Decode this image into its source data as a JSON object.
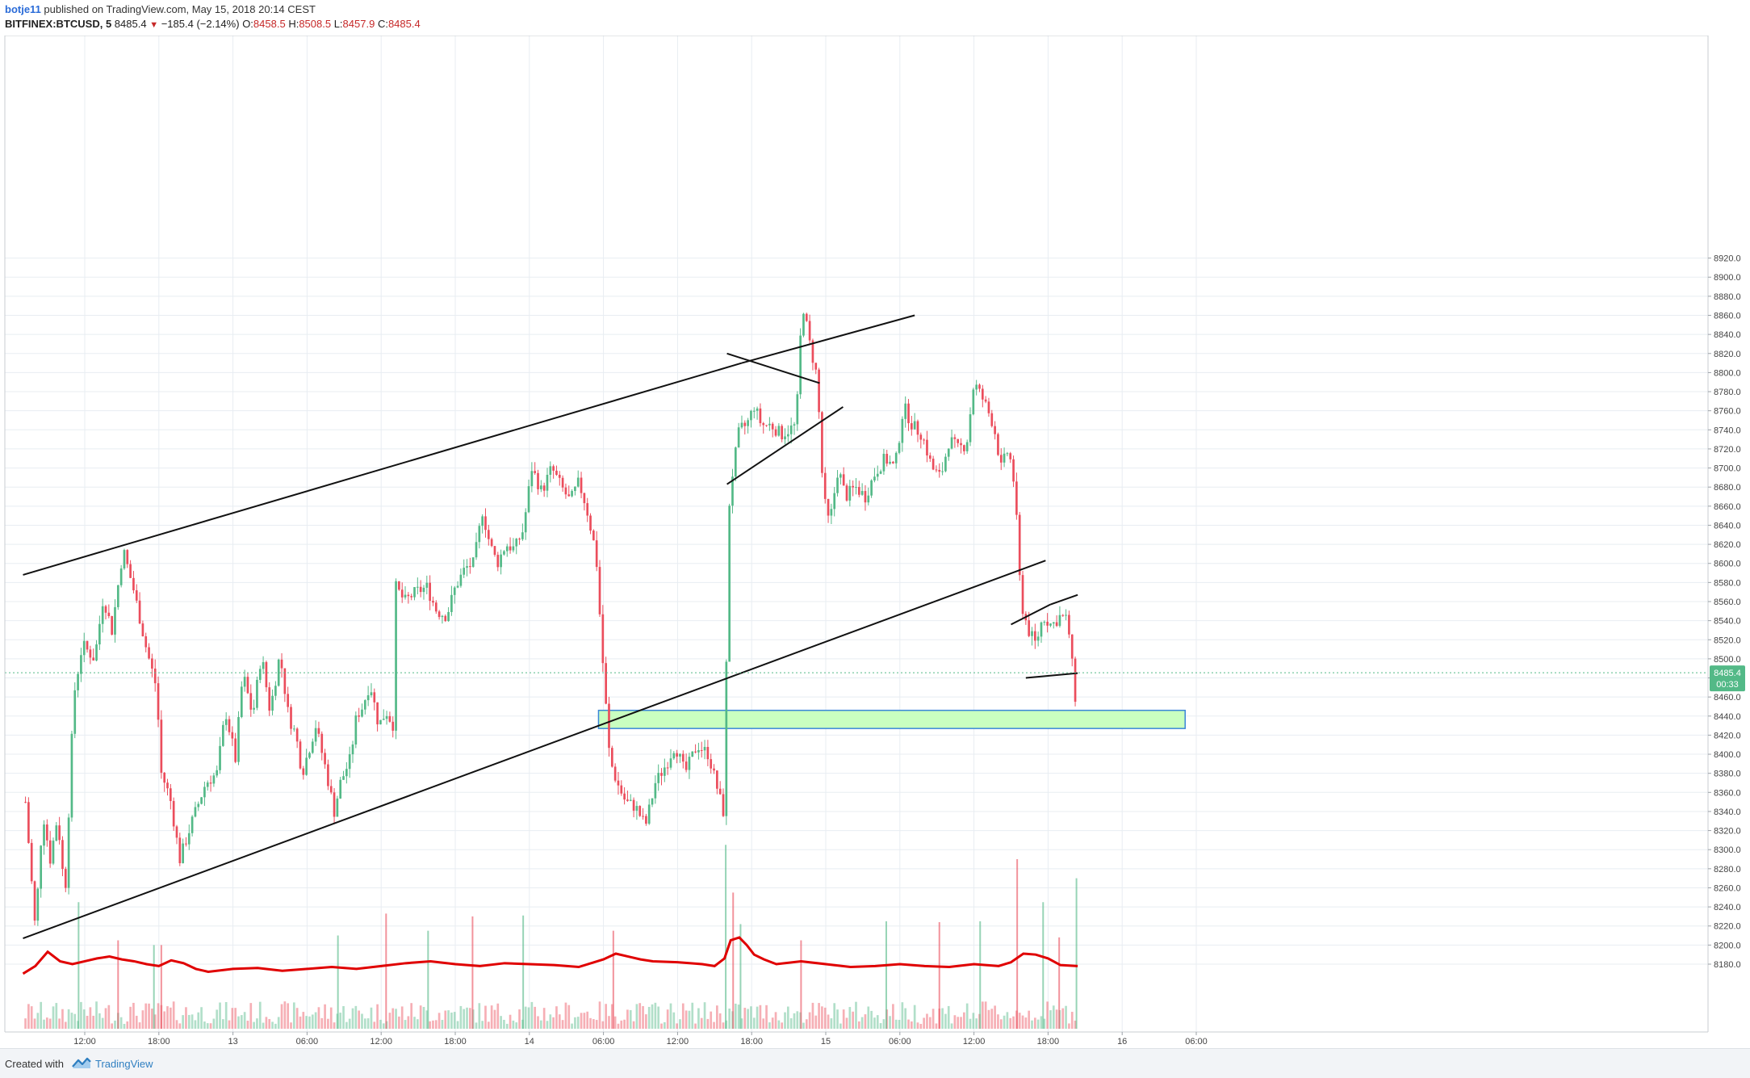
{
  "header": {
    "author": "botje11",
    "published_text": "published on TradingView.com, May 15, 2018 20:14 CEST",
    "symbol": "BITFINEX:BTCUSD, 5",
    "last": "8485.4",
    "change": "−185.4 (−2.14%)",
    "o_label": "O:",
    "o_value": "8458.5",
    "h_label": "H:",
    "h_value": "8508.5",
    "l_label": "L:",
    "l_value": "8457.9",
    "c_label": "C:",
    "c_value": "8485.4"
  },
  "footer": {
    "created_with": "Created with",
    "brand": "TradingView"
  },
  "colors": {
    "up": "#53b987",
    "down": "#eb4d5c",
    "grid": "#e8edf2",
    "volume_ma": "#e00000",
    "zone_fill": "#c9ffc0",
    "zone_border": "#3a86d8",
    "price_label_bg": "#53b987",
    "last_price_line": "#53b987"
  },
  "chart_data": {
    "type": "candlestick",
    "symbol": "BITFINEX:BTCUSD",
    "timeframe": "5",
    "yaxis": {
      "range": [
        8160,
        8920
      ],
      "ticks": [
        "8920.0",
        "8900.0",
        "8880.0",
        "8860.0",
        "8840.0",
        "8820.0",
        "8800.0",
        "8780.0",
        "8760.0",
        "8740.0",
        "8720.0",
        "8700.0",
        "8680.0",
        "8660.0",
        "8640.0",
        "8620.0",
        "8600.0",
        "8580.0",
        "8560.0",
        "8540.0",
        "8520.0",
        "8500.0",
        "8480.0",
        "8460.0",
        "8440.0",
        "8420.0",
        "8400.0",
        "8380.0",
        "8360.0",
        "8340.0",
        "8320.0",
        "8300.0",
        "8280.0",
        "8260.0",
        "8240.0",
        "8220.0",
        "8200.0",
        "8180.0"
      ]
    },
    "xaxis": {
      "range_hours": [
        -3,
        75
      ],
      "ticks": [
        {
          "hour": 0,
          "label": "12:00"
        },
        {
          "hour": 6,
          "label": "18:00"
        },
        {
          "hour": 12,
          "label": "13"
        },
        {
          "hour": 18,
          "label": "06:00"
        },
        {
          "hour": 24,
          "label": "12:00"
        },
        {
          "hour": 30,
          "label": "18:00"
        },
        {
          "hour": 36,
          "label": "14"
        },
        {
          "hour": 42,
          "label": "06:00"
        },
        {
          "hour": 48,
          "label": "12:00"
        },
        {
          "hour": 54,
          "label": "18:00"
        },
        {
          "hour": 60,
          "label": "15"
        },
        {
          "hour": 66,
          "label": "06:00"
        },
        {
          "hour": 72,
          "label": "12:00"
        },
        {
          "hour": 78,
          "label": "18:00"
        },
        {
          "hour": 84,
          "label": "16"
        },
        {
          "hour": 90,
          "label": "06:00"
        }
      ]
    },
    "price_path": [
      [
        -4.8,
        8350
      ],
      [
        -4.0,
        8215
      ],
      [
        -3.4,
        8340
      ],
      [
        -2.8,
        8290
      ],
      [
        -2.2,
        8335
      ],
      [
        -1.6,
        8250
      ],
      [
        -0.9,
        8460
      ],
      [
        -0.2,
        8515
      ],
      [
        0.8,
        8500
      ],
      [
        1.5,
        8565
      ],
      [
        2.2,
        8530
      ],
      [
        3.1,
        8615
      ],
      [
        4.0,
        8570
      ],
      [
        5.0,
        8510
      ],
      [
        5.8,
        8470
      ],
      [
        6.2,
        8380
      ],
      [
        6.9,
        8355
      ],
      [
        7.7,
        8290
      ],
      [
        8.7,
        8330
      ],
      [
        9.8,
        8370
      ],
      [
        10.7,
        8380
      ],
      [
        11.4,
        8445
      ],
      [
        12.2,
        8395
      ],
      [
        12.8,
        8485
      ],
      [
        13.6,
        8440
      ],
      [
        14.3,
        8505
      ],
      [
        15.0,
        8445
      ],
      [
        15.8,
        8505
      ],
      [
        16.5,
        8440
      ],
      [
        17.1,
        8420
      ],
      [
        17.6,
        8380
      ],
      [
        18.7,
        8430
      ],
      [
        19.5,
        8385
      ],
      [
        20.2,
        8340
      ],
      [
        20.7,
        8370
      ],
      [
        21.5,
        8395
      ],
      [
        22.0,
        8440
      ],
      [
        22.5,
        8450
      ],
      [
        23.1,
        8475
      ],
      [
        23.8,
        8430
      ],
      [
        24.4,
        8445
      ],
      [
        25.0,
        8430
      ],
      [
        25.2,
        8575
      ],
      [
        25.9,
        8560
      ],
      [
        26.8,
        8570
      ],
      [
        27.7,
        8575
      ],
      [
        28.5,
        8550
      ],
      [
        29.3,
        8545
      ],
      [
        30.0,
        8575
      ],
      [
        30.8,
        8595
      ],
      [
        31.5,
        8600
      ],
      [
        32.2,
        8655
      ],
      [
        32.8,
        8620
      ],
      [
        33.4,
        8600
      ],
      [
        34.1,
        8620
      ],
      [
        34.8,
        8615
      ],
      [
        35.5,
        8635
      ],
      [
        36.2,
        8700
      ],
      [
        37.0,
        8675
      ],
      [
        37.8,
        8700
      ],
      [
        38.6,
        8680
      ],
      [
        39.3,
        8665
      ],
      [
        40.0,
        8685
      ],
      [
        40.6,
        8660
      ],
      [
        41.4,
        8610
      ],
      [
        41.9,
        8505
      ],
      [
        42.5,
        8395
      ],
      [
        43.1,
        8370
      ],
      [
        43.8,
        8350
      ],
      [
        44.6,
        8345
      ],
      [
        45.4,
        8325
      ],
      [
        46.2,
        8370
      ],
      [
        47.1,
        8390
      ],
      [
        47.8,
        8410
      ],
      [
        48.6,
        8380
      ],
      [
        49.6,
        8410
      ],
      [
        50.5,
        8400
      ],
      [
        51.3,
        8360
      ],
      [
        51.8,
        8335
      ],
      [
        52.1,
        8650
      ],
      [
        52.4,
        8690
      ],
      [
        53.0,
        8740
      ],
      [
        53.6,
        8745
      ],
      [
        54.2,
        8765
      ],
      [
        54.8,
        8745
      ],
      [
        55.6,
        8745
      ],
      [
        56.4,
        8735
      ],
      [
        57.0,
        8740
      ],
      [
        57.6,
        8745
      ],
      [
        58.1,
        8875
      ],
      [
        58.7,
        8830
      ],
      [
        59.3,
        8795
      ],
      [
        59.8,
        8670
      ],
      [
        60.3,
        8640
      ],
      [
        61.0,
        8700
      ],
      [
        61.6,
        8670
      ],
      [
        62.4,
        8680
      ],
      [
        63.2,
        8670
      ],
      [
        64.0,
        8695
      ],
      [
        64.8,
        8710
      ],
      [
        65.6,
        8700
      ],
      [
        66.3,
        8765
      ],
      [
        67.0,
        8745
      ],
      [
        67.8,
        8735
      ],
      [
        68.6,
        8700
      ],
      [
        69.3,
        8690
      ],
      [
        70.0,
        8730
      ],
      [
        70.7,
        8720
      ],
      [
        71.4,
        8725
      ],
      [
        72.0,
        8790
      ],
      [
        72.8,
        8770
      ],
      [
        73.6,
        8745
      ],
      [
        74.2,
        8700
      ],
      [
        74.8,
        8720
      ],
      [
        75.3,
        8680
      ],
      [
        75.8,
        8560
      ],
      [
        76.4,
        8530
      ],
      [
        77.0,
        8515
      ],
      [
        77.6,
        8545
      ],
      [
        78.3,
        8535
      ],
      [
        79.0,
        8545
      ],
      [
        79.6,
        8540
      ],
      [
        80.2,
        8460
      ],
      [
        80.4,
        8485.4
      ]
    ],
    "last_price": 8485.4,
    "last_price_label": "8485.4",
    "countdown_label": "00:33",
    "volume_ma_path": [
      [
        -5,
        8170
      ],
      [
        -4,
        8178
      ],
      [
        -3,
        8193
      ],
      [
        -2,
        8183
      ],
      [
        -1,
        8180
      ],
      [
        0,
        8183
      ],
      [
        1,
        8186
      ],
      [
        2,
        8188
      ],
      [
        3,
        8185
      ],
      [
        4,
        8183
      ],
      [
        5,
        8180
      ],
      [
        6,
        8178
      ],
      [
        7,
        8184
      ],
      [
        8,
        8181
      ],
      [
        9,
        8175
      ],
      [
        10,
        8172
      ],
      [
        12,
        8175
      ],
      [
        14,
        8176
      ],
      [
        16,
        8173
      ],
      [
        18,
        8175
      ],
      [
        20,
        8177
      ],
      [
        22,
        8175
      ],
      [
        24,
        8178
      ],
      [
        26,
        8181
      ],
      [
        28,
        8183
      ],
      [
        30,
        8180
      ],
      [
        32,
        8178
      ],
      [
        34,
        8181
      ],
      [
        36,
        8180
      ],
      [
        38,
        8179
      ],
      [
        40,
        8177
      ],
      [
        42,
        8185
      ],
      [
        43,
        8191
      ],
      [
        44,
        8188
      ],
      [
        45,
        8185
      ],
      [
        46,
        8183
      ],
      [
        48,
        8182
      ],
      [
        50,
        8180
      ],
      [
        51,
        8178
      ],
      [
        51.8,
        8186
      ],
      [
        52.3,
        8205
      ],
      [
        53.0,
        8208
      ],
      [
        53.6,
        8200
      ],
      [
        54.2,
        8190
      ],
      [
        55,
        8185
      ],
      [
        56,
        8180
      ],
      [
        58,
        8183
      ],
      [
        60,
        8180
      ],
      [
        62,
        8177
      ],
      [
        64,
        8178
      ],
      [
        66,
        8180
      ],
      [
        68,
        8178
      ],
      [
        70,
        8177
      ],
      [
        72,
        8180
      ],
      [
        74,
        8178
      ],
      [
        75,
        8182
      ],
      [
        76,
        8191
      ],
      [
        77,
        8190
      ],
      [
        78,
        8186
      ],
      [
        79,
        8179
      ],
      [
        80.4,
        8178
      ]
    ],
    "volume_spikes": [
      [
        -0.5,
        8245
      ],
      [
        2.7,
        8205
      ],
      [
        5.6,
        8200
      ],
      [
        6.2,
        8200
      ],
      [
        20.5,
        8210
      ],
      [
        24.4,
        8233
      ],
      [
        27.8,
        8215
      ],
      [
        31.4,
        8230
      ],
      [
        35.5,
        8231
      ],
      [
        42.8,
        8215
      ],
      [
        51.9,
        8305
      ],
      [
        52.5,
        8255
      ],
      [
        53.1,
        8222
      ],
      [
        58.0,
        8205
      ],
      [
        64.9,
        8225
      ],
      [
        69.2,
        8224
      ],
      [
        72.5,
        8225
      ],
      [
        75.5,
        8290
      ],
      [
        77.6,
        8245
      ],
      [
        78.9,
        8208
      ],
      [
        80.3,
        8270
      ]
    ],
    "annotations": {
      "trendlines": [
        {
          "from": [
            -5,
            8588
          ],
          "to": [
            53.2,
            8810
          ]
        },
        {
          "from": [
            53.2,
            8810
          ],
          "to": [
            67.2,
            8860
          ]
        },
        {
          "from": [
            -5,
            8207
          ],
          "to": [
            77.8,
            8603
          ]
        },
        {
          "from": [
            52.0,
            8820
          ],
          "to": [
            59.5,
            8789
          ]
        },
        {
          "from": [
            52.0,
            8683
          ],
          "to": [
            61.4,
            8764
          ]
        },
        {
          "from": [
            75.0,
            8536
          ],
          "to": [
            78.2,
            8557
          ]
        },
        {
          "from": [
            78.2,
            8557
          ],
          "to": [
            80.4,
            8567
          ]
        },
        {
          "from": [
            76.2,
            8480
          ],
          "to": [
            80.4,
            8485
          ]
        }
      ],
      "support_zone": {
        "x_from": 41.6,
        "x_to": 89.1,
        "y_low": 8427,
        "y_high": 8446
      }
    },
    "candles_seed": 7,
    "candles_per_hour": 4
  }
}
